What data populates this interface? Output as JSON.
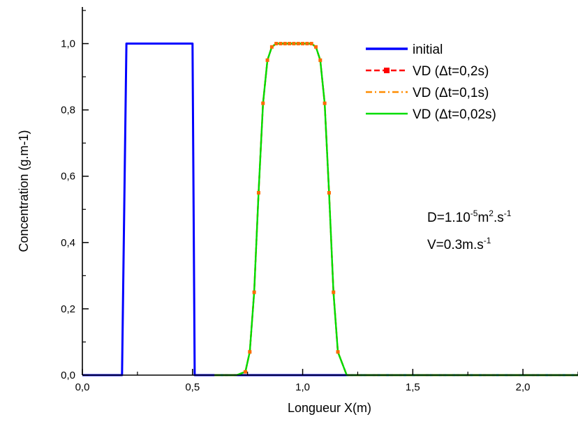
{
  "chart_data": {
    "type": "line",
    "xlabel": "Longueur X(m)",
    "ylabel": "Concentration (g.m-1)",
    "xlim": [
      0,
      2.25
    ],
    "ylim": [
      0,
      1.1
    ],
    "x_ticks": [
      "0,0",
      "0,5",
      "1,0",
      "1,5",
      "2,0"
    ],
    "x_tick_values": [
      0,
      0.5,
      1.0,
      1.5,
      2.0
    ],
    "y_ticks": [
      "0,0",
      "0,2",
      "0,4",
      "0,6",
      "0,8",
      "1,0"
    ],
    "y_tick_values": [
      0,
      0.2,
      0.4,
      0.6,
      0.8,
      1.0
    ],
    "legend_position": "top-right",
    "annotations": {
      "d_prefix": "D=1.10",
      "d_exp1": "-5",
      "d_mid": "m",
      "d_exp2": "2",
      "d_mid2": ".s",
      "d_exp3": "-1",
      "v_prefix": "V=0.3m.s",
      "v_exp": "-1"
    },
    "series": [
      {
        "name": "initial",
        "color": "#0000ff",
        "style": "solid",
        "x": [
          0,
          0.18,
          0.2,
          0.5,
          0.51,
          2.25
        ],
        "y": [
          0,
          0,
          1.0,
          1.0,
          0,
          0
        ]
      },
      {
        "name": "VD (Δt=0,2s)",
        "color": "#ff0000",
        "style": "dash-square",
        "x": [
          0.6,
          0.7,
          0.74,
          0.76,
          0.78,
          0.8,
          0.82,
          0.84,
          0.86,
          0.88,
          0.9,
          0.92,
          0.94,
          0.96,
          0.98,
          1.0,
          1.02,
          1.04,
          1.06,
          1.08,
          1.1,
          1.12,
          1.14,
          1.16,
          1.2,
          1.4,
          1.6,
          1.8,
          2.0,
          2.25
        ],
        "y": [
          0,
          0,
          0.01,
          0.07,
          0.25,
          0.55,
          0.82,
          0.95,
          0.99,
          1.0,
          1.0,
          1.0,
          1.0,
          1.0,
          1.0,
          1.0,
          1.0,
          1.0,
          0.99,
          0.95,
          0.82,
          0.55,
          0.25,
          0.07,
          0,
          0,
          0,
          0,
          0,
          0
        ]
      },
      {
        "name": "VD (Δt=0,1s)",
        "color": "#ff8c00",
        "style": "dash-dot",
        "x": [
          0.6,
          0.7,
          0.74,
          0.76,
          0.78,
          0.8,
          0.82,
          0.84,
          0.86,
          0.88,
          0.9,
          0.92,
          0.94,
          0.96,
          0.98,
          1.0,
          1.02,
          1.04,
          1.06,
          1.08,
          1.1,
          1.12,
          1.14,
          1.16,
          1.2,
          1.4,
          1.6,
          1.8,
          2.0,
          2.25
        ],
        "y": [
          0,
          0,
          0.01,
          0.07,
          0.25,
          0.55,
          0.82,
          0.95,
          0.99,
          1.0,
          1.0,
          1.0,
          1.0,
          1.0,
          1.0,
          1.0,
          1.0,
          1.0,
          0.99,
          0.95,
          0.82,
          0.55,
          0.25,
          0.07,
          0,
          0,
          0,
          0,
          0,
          0
        ]
      },
      {
        "name": "VD (Δt=0,02s)",
        "color": "#00dd00",
        "style": "solid",
        "x": [
          0.6,
          0.7,
          0.74,
          0.76,
          0.78,
          0.8,
          0.82,
          0.84,
          0.86,
          0.88,
          0.9,
          0.92,
          0.94,
          0.96,
          0.98,
          1.0,
          1.02,
          1.04,
          1.06,
          1.08,
          1.1,
          1.12,
          1.14,
          1.16,
          1.2,
          1.4,
          1.6,
          1.8,
          2.0,
          2.25
        ],
        "y": [
          0,
          0,
          0.01,
          0.07,
          0.25,
          0.55,
          0.82,
          0.95,
          0.99,
          1.0,
          1.0,
          1.0,
          1.0,
          1.0,
          1.0,
          1.0,
          1.0,
          1.0,
          0.99,
          0.95,
          0.82,
          0.55,
          0.25,
          0.07,
          0,
          0,
          0,
          0,
          0,
          0
        ]
      }
    ]
  }
}
